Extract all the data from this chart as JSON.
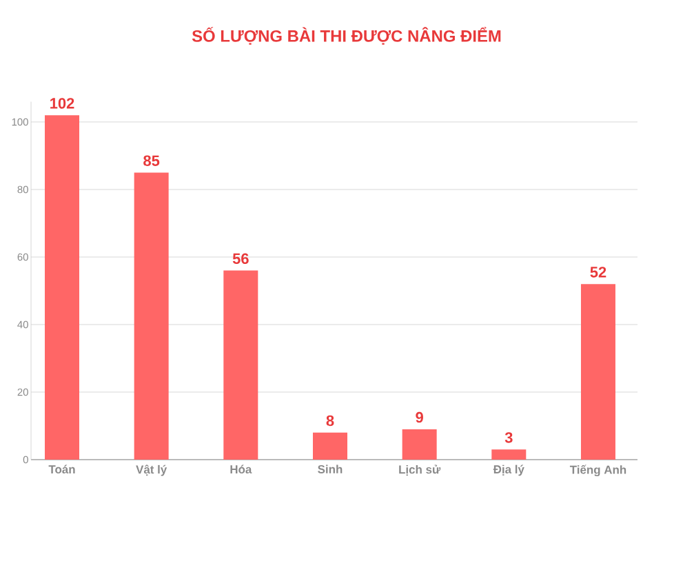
{
  "chart_data": {
    "type": "bar",
    "title": "SỐ LƯỢNG BÀI THI ĐƯỢC NÂNG ĐIỂM",
    "categories": [
      "Toán",
      "Vật lý",
      "Hóa",
      "Sinh",
      "Lịch sử",
      "Địa lý",
      "Tiếng Anh"
    ],
    "values": [
      102,
      85,
      56,
      8,
      9,
      3,
      52
    ],
    "color": "#ff6666",
    "ylim": [
      0,
      106
    ],
    "yticks": [
      0,
      20,
      40,
      60,
      80,
      100
    ],
    "grid": "y",
    "data_labels": true
  }
}
